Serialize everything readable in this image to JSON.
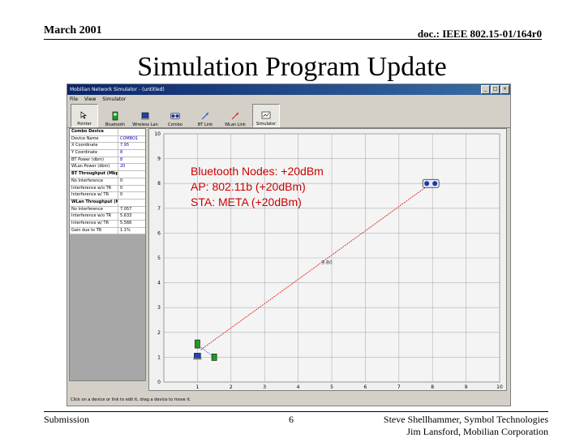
{
  "header": {
    "date": "March 2001",
    "doc_id": "doc.: IEEE 802.15-01/164r0"
  },
  "slide_title": "Simulation Program Update",
  "window": {
    "title": "Mobilian Network Simulator - (untitled)",
    "menu": [
      "File",
      "View",
      "Simulator"
    ],
    "toolbar": [
      {
        "label": "Pointer",
        "icon": "pointer-icon"
      },
      {
        "label": "Bluetooth",
        "icon": "bluetooth-device-icon"
      },
      {
        "label": "Wireless Lan",
        "icon": "wlan-device-icon"
      },
      {
        "label": "Combo",
        "icon": "combo-device-icon"
      },
      {
        "label": "BT Link",
        "icon": "bt-link-icon"
      },
      {
        "label": "WLan Link",
        "icon": "wlan-link-icon"
      },
      {
        "label": "Simulator",
        "icon": "simulator-icon"
      }
    ],
    "properties": [
      {
        "k": "Combo Device",
        "v": "",
        "head": true
      },
      {
        "k": "Device Name",
        "v": "COMBO1"
      },
      {
        "k": "X Coordinate",
        "v": "7.95"
      },
      {
        "k": "Y Coordinate",
        "v": "8"
      },
      {
        "k": "BT Power (dbm)",
        "v": "8"
      },
      {
        "k": "WLan Power (dbm)",
        "v": "20"
      },
      {
        "k": "BT Throughput (Mbps)",
        "v": "",
        "head": true
      },
      {
        "k": "No Interference",
        "v": "0"
      },
      {
        "k": "Interference w/o TR",
        "v": "0"
      },
      {
        "k": "Interference w/ TR",
        "v": "0"
      },
      {
        "k": "WLan Throughput (Mbps)",
        "v": "",
        "head": true
      },
      {
        "k": "No Interference",
        "v": "7.057"
      },
      {
        "k": "Interference w/o TR",
        "v": "5.633"
      },
      {
        "k": "Interference w/ TR",
        "v": "5.566"
      },
      {
        "k": "Gain due to TR",
        "v": "1.1%"
      }
    ],
    "status_text": "Click on a device or link to edit it, drag a device to move it."
  },
  "plot": {
    "x_ticks": [
      "1",
      "2",
      "3",
      "4",
      "5",
      "6",
      "7",
      "8",
      "9",
      "10"
    ],
    "y_ticks": [
      "0",
      "1",
      "2",
      "3",
      "4",
      "5",
      "6",
      "7",
      "8",
      "9",
      "10"
    ],
    "link_label": "9.80",
    "combo_a_label": "",
    "combo_b_label": "",
    "xlim": [
      0,
      10
    ],
    "ylim": [
      0,
      10
    ]
  },
  "chart_data": {
    "type": "scatter",
    "xlim": [
      0,
      10
    ],
    "ylim": [
      0,
      10
    ],
    "grid": true,
    "points": [
      {
        "name": "COMBO1",
        "x": 7.95,
        "y": 8
      },
      {
        "name": "BT node",
        "x": 1.0,
        "y": 1.5
      },
      {
        "name": "STA",
        "x": 1.0,
        "y": 1.0
      },
      {
        "name": "AP",
        "x": 1.5,
        "y": 1.0
      }
    ],
    "links": [
      {
        "from": [
          1.1,
          1.3
        ],
        "to": [
          7.9,
          7.95
        ],
        "label": "9.80",
        "color": "#dd2222"
      }
    ]
  },
  "annotation": {
    "line1": "Bluetooth Nodes: +20dBm",
    "line2": "AP: 802.11b (+20dBm)",
    "line3": "STA: META (+20dBm)"
  },
  "footer": {
    "left": "Submission",
    "page": "6",
    "right1": "Steve Shellhammer, Symbol Technologies",
    "right2": "Jim Lansford, Mobilian Corporation"
  },
  "colors": {
    "accent_red": "#cc0000",
    "title_bar": "#0a246a"
  }
}
